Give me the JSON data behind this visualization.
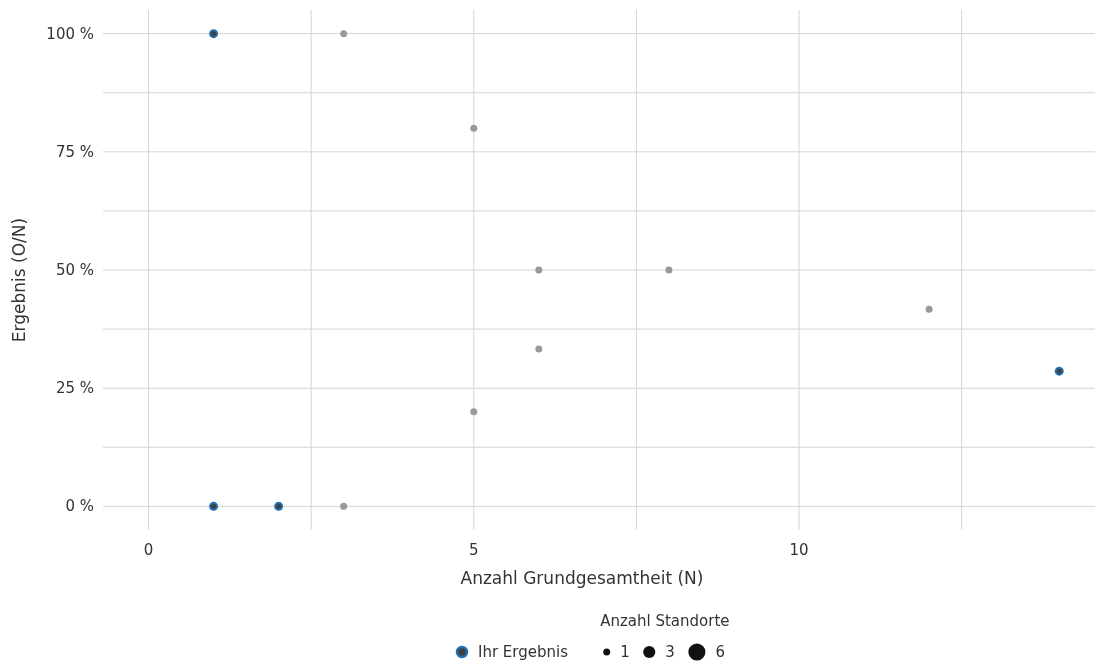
{
  "chart_data": {
    "type": "bubble",
    "xlabel": "Anzahl Grundgesamtheit (N)",
    "ylabel": "Ergebnis (O/N)",
    "legend_title": "Anzahl Standorte",
    "xlim": [
      -0.7,
      14.55
    ],
    "xticks": [
      0,
      {
        "value": 2.5,
        "label": null
      },
      5,
      {
        "value": 7.5,
        "label": null
      },
      10,
      {
        "value": 12.5,
        "label": null
      }
    ],
    "ylim": [
      -5,
      105
    ],
    "yticks": [
      {
        "value": 0,
        "label": "0 %"
      },
      {
        "value": 12.5,
        "label": null
      },
      {
        "value": 25,
        "label": "25 %"
      },
      {
        "value": 37.5,
        "label": null
      },
      {
        "value": 50,
        "label": "50 %"
      },
      {
        "value": 62.5,
        "label": null
      },
      {
        "value": 75,
        "label": "75 %"
      },
      {
        "value": 87.5,
        "label": null
      },
      {
        "value": 100,
        "label": "100 %"
      }
    ],
    "grid": true,
    "legend": "bottom",
    "size_legend": [
      1,
      3,
      6
    ],
    "series": [
      {
        "color": "#999999",
        "x": [
          3,
          5,
          6,
          8,
          12,
          6,
          5,
          3
        ],
        "values": [
          100,
          80,
          50,
          50,
          41.7,
          33.3,
          20,
          0
        ],
        "sizes": [
          1,
          1,
          1,
          1,
          1,
          1,
          1,
          1
        ]
      },
      {
        "name": "Ihr Ergebnis",
        "color": "#1f6fb4",
        "x": [
          1,
          1,
          2,
          14
        ],
        "values": [
          100,
          0,
          0,
          28.6
        ],
        "sizes": [
          1,
          1,
          1,
          1
        ]
      }
    ]
  }
}
